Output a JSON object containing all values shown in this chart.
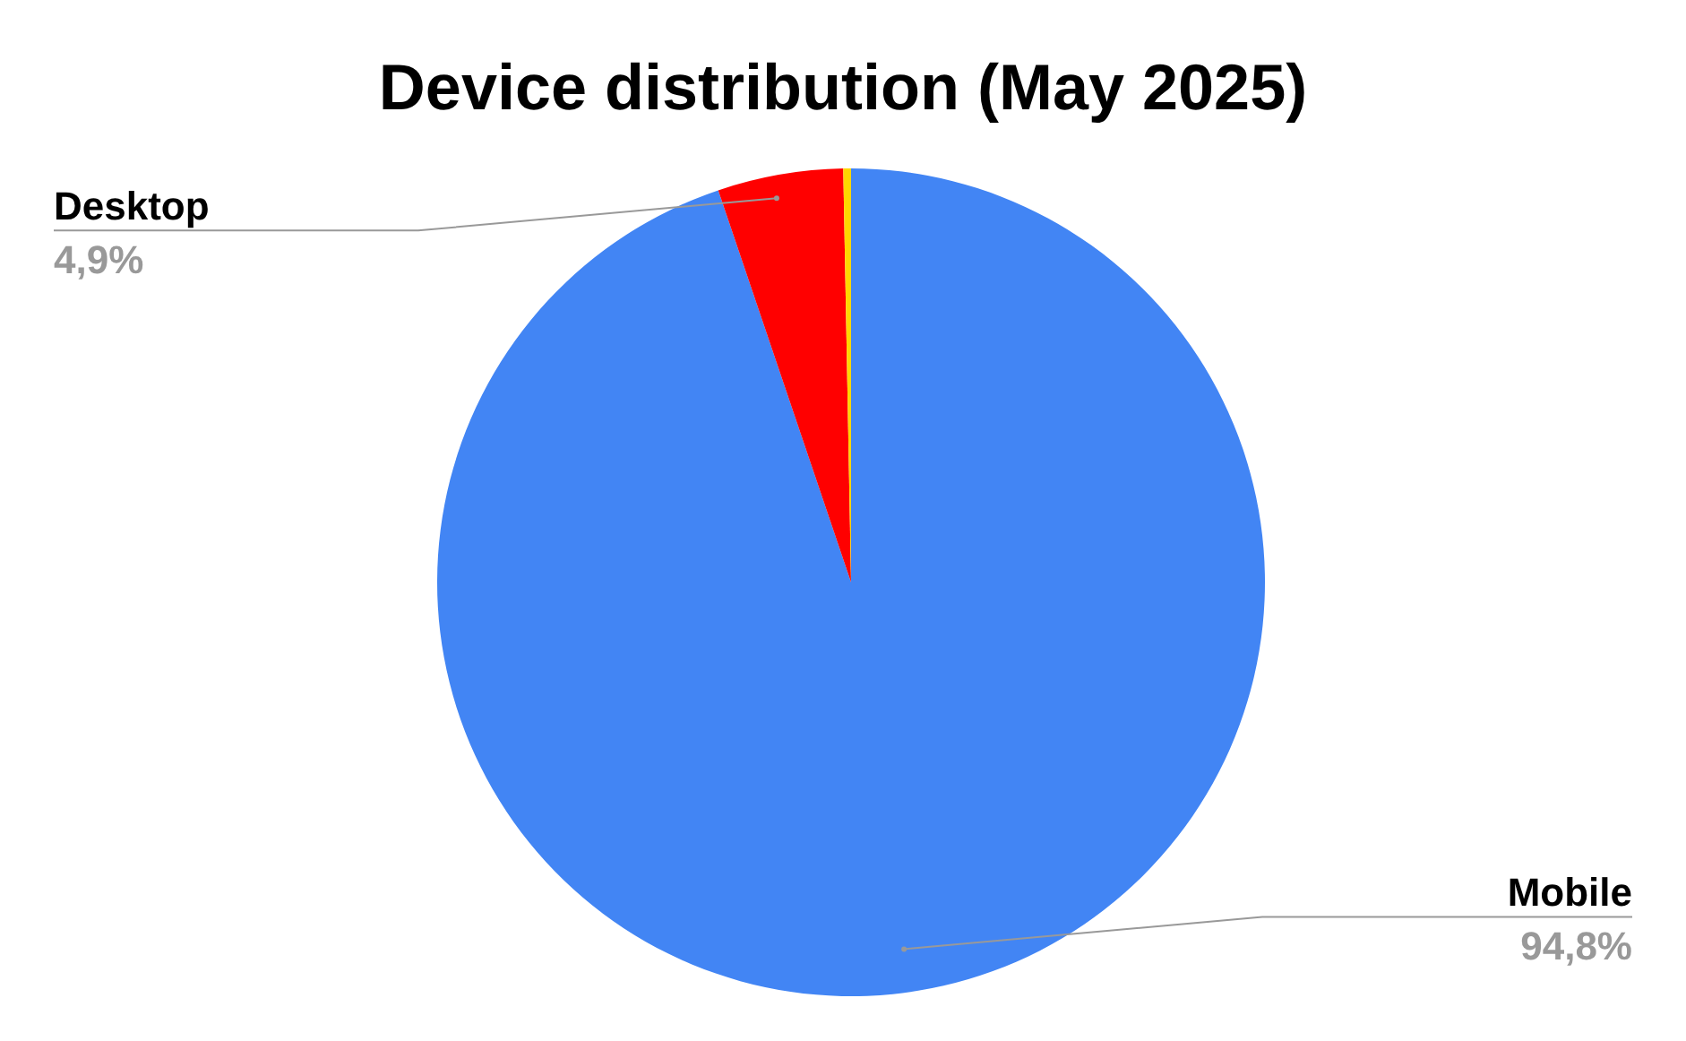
{
  "chart_data": {
    "type": "pie",
    "title": "Device distribution (May 2025)",
    "categories": [
      "Mobile",
      "Desktop",
      null
    ],
    "values": [
      94.8,
      4.9,
      0.3
    ],
    "colors": [
      "#4285f4",
      "#ff0000",
      "#ffd600"
    ],
    "value_labels": [
      "94,8%",
      "4,9%",
      null
    ]
  }
}
